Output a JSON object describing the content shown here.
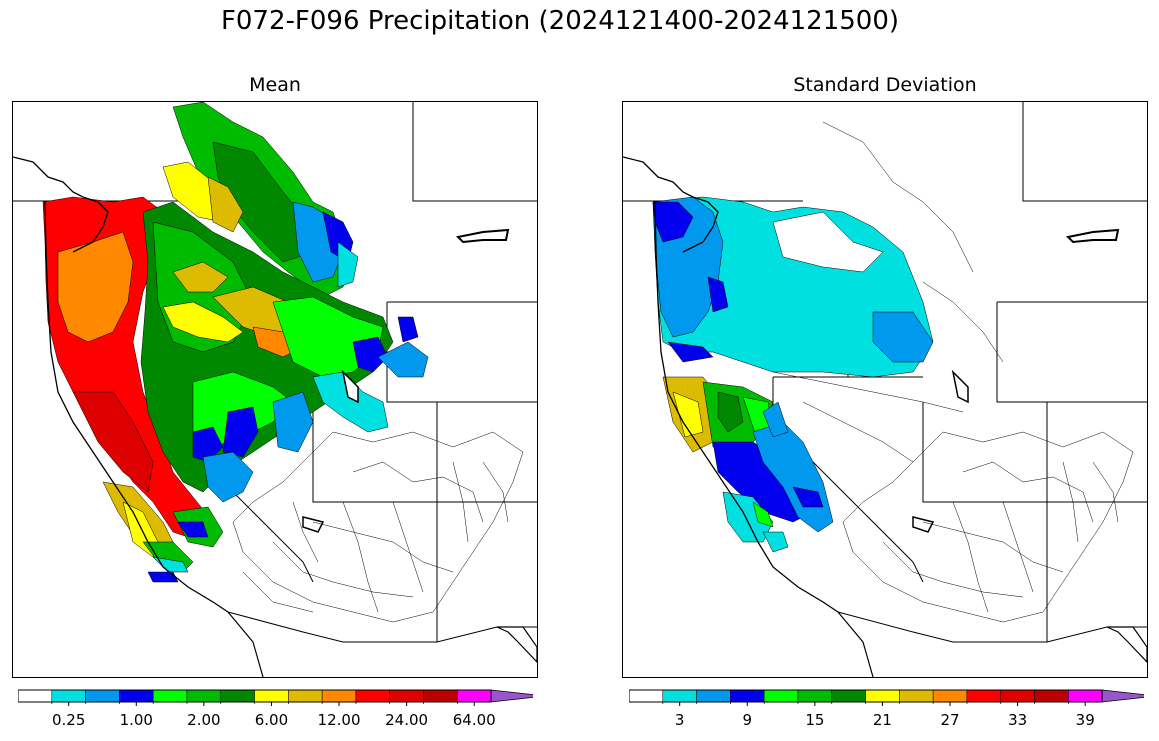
{
  "figure": {
    "title": "F072-F096 Precipitation (2024121400-2024121500)"
  },
  "panels": [
    {
      "title": "Mean",
      "colorbar": {
        "tick_labels": [
          "0.25",
          "1.00",
          "2.00",
          "6.00",
          "12.00",
          "24.00",
          "64.00"
        ],
        "colors": [
          "#ffffff",
          "#00e0e0",
          "#0099ee",
          "#0000ee",
          "#00ff00",
          "#00bb00",
          "#008800",
          "#ffff00",
          "#ddbb00",
          "#ff8800",
          "#ff0000",
          "#dd0000",
          "#bb0000",
          "#ff00ff",
          "#9955cc"
        ]
      }
    },
    {
      "title": "Standard Deviation",
      "colorbar": {
        "tick_labels": [
          "3",
          "9",
          "15",
          "21",
          "27",
          "33",
          "39"
        ],
        "colors": [
          "#ffffff",
          "#00e0e0",
          "#0099ee",
          "#0000ee",
          "#00ff00",
          "#00bb00",
          "#008800",
          "#ffff00",
          "#ddbb00",
          "#ff8800",
          "#ff0000",
          "#dd0000",
          "#bb0000",
          "#ff00ff",
          "#9955cc"
        ]
      }
    }
  ]
}
